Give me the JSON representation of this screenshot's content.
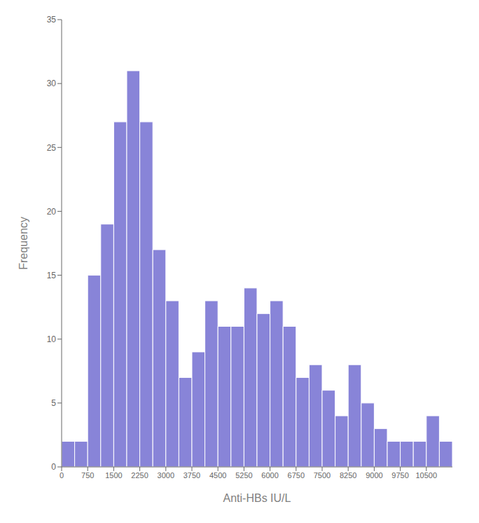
{
  "chart_data": {
    "type": "histogram",
    "bins": [
      0,
      375,
      750,
      1125,
      1500,
      1875,
      2250,
      2625,
      3000,
      3375,
      3750,
      4125,
      4500,
      4875,
      5250,
      5625,
      6000,
      6375,
      6750,
      7125,
      7500,
      7875,
      8250,
      8625,
      9000,
      9375,
      9750,
      10125,
      10500,
      10875,
      11250
    ],
    "values": [
      2,
      2,
      15,
      19,
      27,
      31,
      27,
      17,
      13,
      7,
      9,
      13,
      11,
      11,
      14,
      12,
      13,
      11,
      7,
      8,
      6,
      4,
      8,
      5,
      3,
      2,
      2,
      2,
      4,
      2
    ],
    "xlim": [
      0,
      11250
    ],
    "ylim": [
      0,
      35
    ],
    "xticks": [
      0,
      750,
      1500,
      2250,
      3000,
      3750,
      4500,
      5250,
      6000,
      6750,
      7500,
      8250,
      9000,
      9750,
      10500
    ],
    "yticks": [
      0,
      5,
      10,
      15,
      20,
      25,
      30,
      35
    ],
    "xlabel": "Anti-HBs IU/L",
    "ylabel": "Frequency",
    "grid": false
  }
}
